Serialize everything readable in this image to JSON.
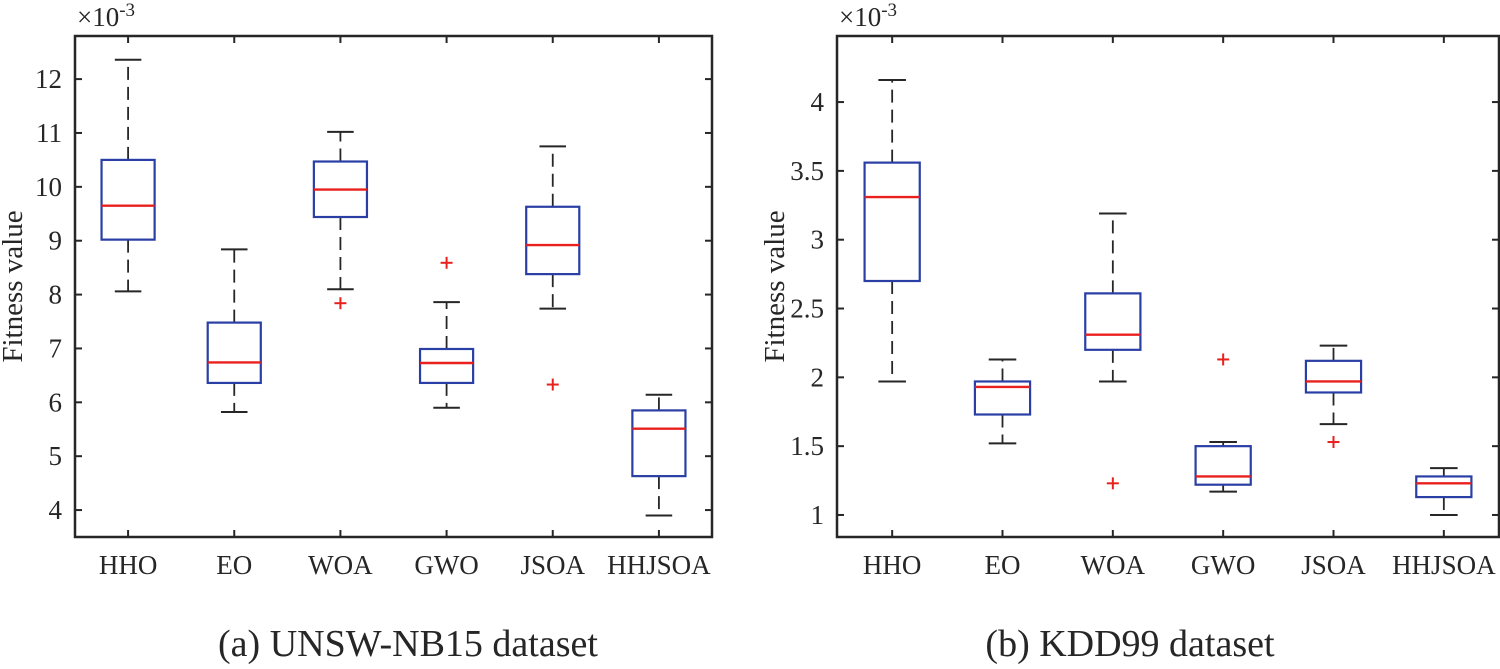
{
  "chart_data": [
    {
      "type": "boxplot",
      "title": "",
      "caption": "(a) UNSW-NB15 dataset",
      "xlabel": "",
      "ylabel": "Fitness value",
      "exponent_label": "×10",
      "exponent_power": "-3",
      "ylim": [
        3.5,
        12.8
      ],
      "yticks": [
        4,
        5,
        6,
        7,
        8,
        9,
        10,
        11,
        12
      ],
      "ytick_labels": [
        "4",
        "5",
        "6",
        "7",
        "8",
        "9",
        "10",
        "11",
        "12"
      ],
      "categories": [
        "HHO",
        "EO",
        "WOA",
        "GWO",
        "JSOA",
        "HHJSOA"
      ],
      "boxes": [
        {
          "name": "HHO",
          "whisker_low": 8.06,
          "q1": 9.02,
          "median": 9.65,
          "q3": 10.5,
          "whisker_high": 12.36,
          "outliers": []
        },
        {
          "name": "EO",
          "whisker_low": 5.82,
          "q1": 6.36,
          "median": 6.74,
          "q3": 7.48,
          "whisker_high": 8.84,
          "outliers": []
        },
        {
          "name": "WOA",
          "whisker_low": 8.1,
          "q1": 9.44,
          "median": 9.95,
          "q3": 10.47,
          "whisker_high": 11.02,
          "outliers": [
            7.84
          ]
        },
        {
          "name": "GWO",
          "whisker_low": 5.9,
          "q1": 6.36,
          "median": 6.73,
          "q3": 6.99,
          "whisker_high": 7.86,
          "outliers": [
            8.59
          ]
        },
        {
          "name": "JSOA",
          "whisker_low": 7.74,
          "q1": 8.38,
          "median": 8.92,
          "q3": 9.63,
          "whisker_high": 10.75,
          "outliers": [
            6.33
          ]
        },
        {
          "name": "HHJSOA",
          "whisker_low": 3.9,
          "q1": 4.63,
          "median": 5.51,
          "q3": 5.85,
          "whisker_high": 6.14,
          "outliers": []
        }
      ]
    },
    {
      "type": "boxplot",
      "title": "",
      "caption": "(b) KDD99 dataset",
      "xlabel": "",
      "ylabel": "Fitness value",
      "exponent_label": "×10",
      "exponent_power": "-3",
      "ylim": [
        0.84,
        4.48
      ],
      "yticks": [
        1,
        1.5,
        2,
        2.5,
        3,
        3.5,
        4
      ],
      "ytick_labels": [
        "1",
        "1.5",
        "2",
        "2.5",
        "3",
        "3.5",
        "4"
      ],
      "categories": [
        "HHO",
        "EO",
        "WOA",
        "GWO",
        "JSOA",
        "HHJSOA"
      ],
      "boxes": [
        {
          "name": "HHO",
          "whisker_low": 1.97,
          "q1": 2.7,
          "median": 3.31,
          "q3": 3.56,
          "whisker_high": 4.16,
          "outliers": []
        },
        {
          "name": "EO",
          "whisker_low": 1.52,
          "q1": 1.73,
          "median": 1.93,
          "q3": 1.97,
          "whisker_high": 2.13,
          "outliers": []
        },
        {
          "name": "WOA",
          "whisker_low": 1.97,
          "q1": 2.2,
          "median": 2.31,
          "q3": 2.61,
          "whisker_high": 3.19,
          "outliers": [
            1.23
          ]
        },
        {
          "name": "GWO",
          "whisker_low": 1.17,
          "q1": 1.22,
          "median": 1.28,
          "q3": 1.5,
          "whisker_high": 1.53,
          "outliers": [
            2.13
          ]
        },
        {
          "name": "JSOA",
          "whisker_low": 1.66,
          "q1": 1.89,
          "median": 1.97,
          "q3": 2.12,
          "whisker_high": 2.23,
          "outliers": [
            1.53
          ]
        },
        {
          "name": "HHJSOA",
          "whisker_low": 1.0,
          "q1": 1.13,
          "median": 1.23,
          "q3": 1.28,
          "whisker_high": 1.34,
          "outliers": []
        }
      ]
    }
  ],
  "colors": {
    "box": "#2a3fa5",
    "median": "#e8211f",
    "whisker": "#262626",
    "outlier": "#e8211f",
    "axis": "#262626"
  }
}
